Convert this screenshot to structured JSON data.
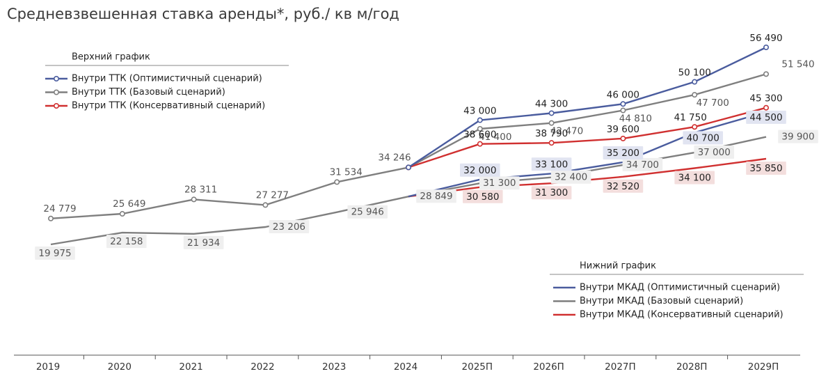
{
  "chart_data": {
    "type": "line",
    "title": "Средневзвешенная ставка аренды*, руб./ кв м/год",
    "categories": [
      "2019",
      "2020",
      "2021",
      "2022",
      "2023",
      "2024",
      "2025П",
      "2026П",
      "2027П",
      "2028П",
      "2029П"
    ],
    "ylim": [
      15000,
      60000
    ],
    "colors": {
      "optimistic": "#4a5c9e",
      "base": "#7f7f7f",
      "conservative": "#d03030"
    },
    "legends": [
      {
        "heading": "Верхний график",
        "items": [
          "Внутри ТТК (Оптимистичный сценарий)",
          "Внутри ТТК (Базовый сценарий)",
          "Внутри ТТК (Консервативный сценарий)"
        ]
      },
      {
        "heading": "Нижний график",
        "items": [
          "Внутри МКАД (Оптимистичный сценарий)",
          "Внутри МКАД (Базовый сценарий)",
          "Внутри МКАД (Консервативный сценарий)"
        ]
      }
    ],
    "series": [
      {
        "name": "Внутри ТТК (Оптимистичный сценарий)",
        "group": "upper",
        "scenario": "optimistic",
        "values": [
          null,
          null,
          null,
          null,
          null,
          34246,
          43000,
          44300,
          46000,
          50100,
          56490
        ],
        "labels": [
          null,
          null,
          null,
          null,
          null,
          null,
          "43 000",
          "44 300",
          "46 000",
          "50 100",
          "56 490"
        ]
      },
      {
        "name": "Внутри ТТК (Базовый сценарий)",
        "group": "upper",
        "scenario": "base",
        "values": [
          24779,
          25649,
          28311,
          27277,
          31534,
          34246,
          41400,
          42470,
          44810,
          47700,
          51540
        ],
        "labels": [
          "24 779",
          "25 649",
          "28 311",
          "27 277",
          "31 534",
          "34 246",
          "41 400",
          "42 470",
          "44 810",
          "47 700",
          "51 540"
        ]
      },
      {
        "name": "Внутри ТТК (Консервативный сценарий)",
        "group": "upper",
        "scenario": "conservative",
        "values": [
          null,
          null,
          null,
          null,
          null,
          34246,
          38600,
          38790,
          39600,
          41750,
          45300
        ],
        "labels": [
          null,
          null,
          null,
          null,
          null,
          null,
          "38 600",
          "38 790",
          "39 600",
          "41 750",
          "45 300"
        ]
      },
      {
        "name": "Внутри МКАД (Оптимистичный сценарий)",
        "group": "lower",
        "scenario": "optimistic",
        "values": [
          null,
          null,
          null,
          null,
          null,
          28849,
          32000,
          33100,
          35200,
          40700,
          44500
        ],
        "labels": [
          null,
          null,
          null,
          null,
          null,
          null,
          "32 000",
          "33 100",
          "35 200",
          "40 700",
          "44 500"
        ]
      },
      {
        "name": "Внутри МКАД (Базовый сценарий)",
        "group": "lower",
        "scenario": "base",
        "values": [
          19975,
          22158,
          21934,
          23206,
          25946,
          28849,
          31300,
          32400,
          34700,
          37000,
          39900
        ],
        "labels": [
          "19 975",
          "22 158",
          "21 934",
          "23 206",
          "25 946",
          "28 849",
          "31 300",
          "32 400",
          "34 700",
          "37 000",
          "39 900"
        ]
      },
      {
        "name": "Внутри МКАД (Консервативный сценарий)",
        "group": "lower",
        "scenario": "conservative",
        "values": [
          null,
          null,
          null,
          null,
          null,
          28849,
          30580,
          31300,
          32520,
          34100,
          35850
        ],
        "labels": [
          null,
          null,
          null,
          null,
          null,
          null,
          "30 580",
          "31 300",
          "32 520",
          "34 100",
          "35 850"
        ]
      }
    ]
  }
}
